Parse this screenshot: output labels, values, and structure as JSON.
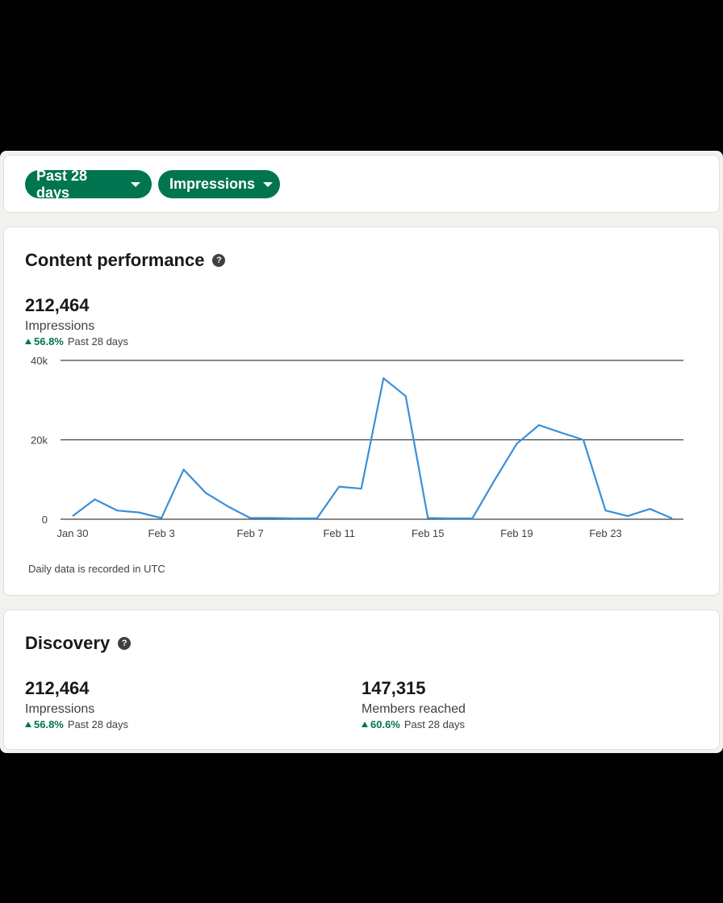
{
  "filters": {
    "range_label": "Past 28 days",
    "metric_label": "Impressions"
  },
  "content_performance": {
    "title": "Content performance",
    "help_icon": "?",
    "total": "212,464",
    "label": "Impressions",
    "change": "56.8%",
    "period": "Past 28 days",
    "note": "Daily data is recorded in UTC"
  },
  "chart_data": {
    "type": "line",
    "title": "",
    "xlabel": "",
    "ylabel": "",
    "ylim": [
      0,
      40000
    ],
    "yticks": [
      0,
      20000,
      40000
    ],
    "ytick_labels": [
      "0",
      "20k",
      "40k"
    ],
    "xtick_labels": [
      "Jan 30",
      "Feb 3",
      "Feb 7",
      "Feb 11",
      "Feb 15",
      "Feb 19",
      "Feb 23"
    ],
    "xtick_indices": [
      0,
      4,
      8,
      12,
      16,
      20,
      24
    ],
    "x": [
      "Jan 30",
      "Jan 31",
      "Feb 1",
      "Feb 2",
      "Feb 3",
      "Feb 4",
      "Feb 5",
      "Feb 6",
      "Feb 7",
      "Feb 8",
      "Feb 9",
      "Feb 10",
      "Feb 11",
      "Feb 12",
      "Feb 13",
      "Feb 14",
      "Feb 15",
      "Feb 16",
      "Feb 17",
      "Feb 18",
      "Feb 19",
      "Feb 20",
      "Feb 21",
      "Feb 22",
      "Feb 23",
      "Feb 24",
      "Feb 25",
      "Feb 26"
    ],
    "series": [
      {
        "name": "Impressions",
        "color": "#3b8fd8",
        "values": [
          800,
          5000,
          2200,
          1700,
          300,
          12500,
          6600,
          3200,
          300,
          300,
          200,
          200,
          8200,
          7700,
          35500,
          31000,
          300,
          200,
          200,
          9800,
          19000,
          23700,
          21800,
          20000,
          2200,
          800,
          2600,
          200
        ]
      }
    ]
  },
  "discovery": {
    "title": "Discovery",
    "help_icon": "?",
    "impressions": {
      "value": "212,464",
      "label": "Impressions",
      "change": "56.8%",
      "period": "Past 28 days"
    },
    "members": {
      "value": "147,315",
      "label": "Members reached",
      "change": "60.6%",
      "period": "Past 28 days"
    }
  }
}
